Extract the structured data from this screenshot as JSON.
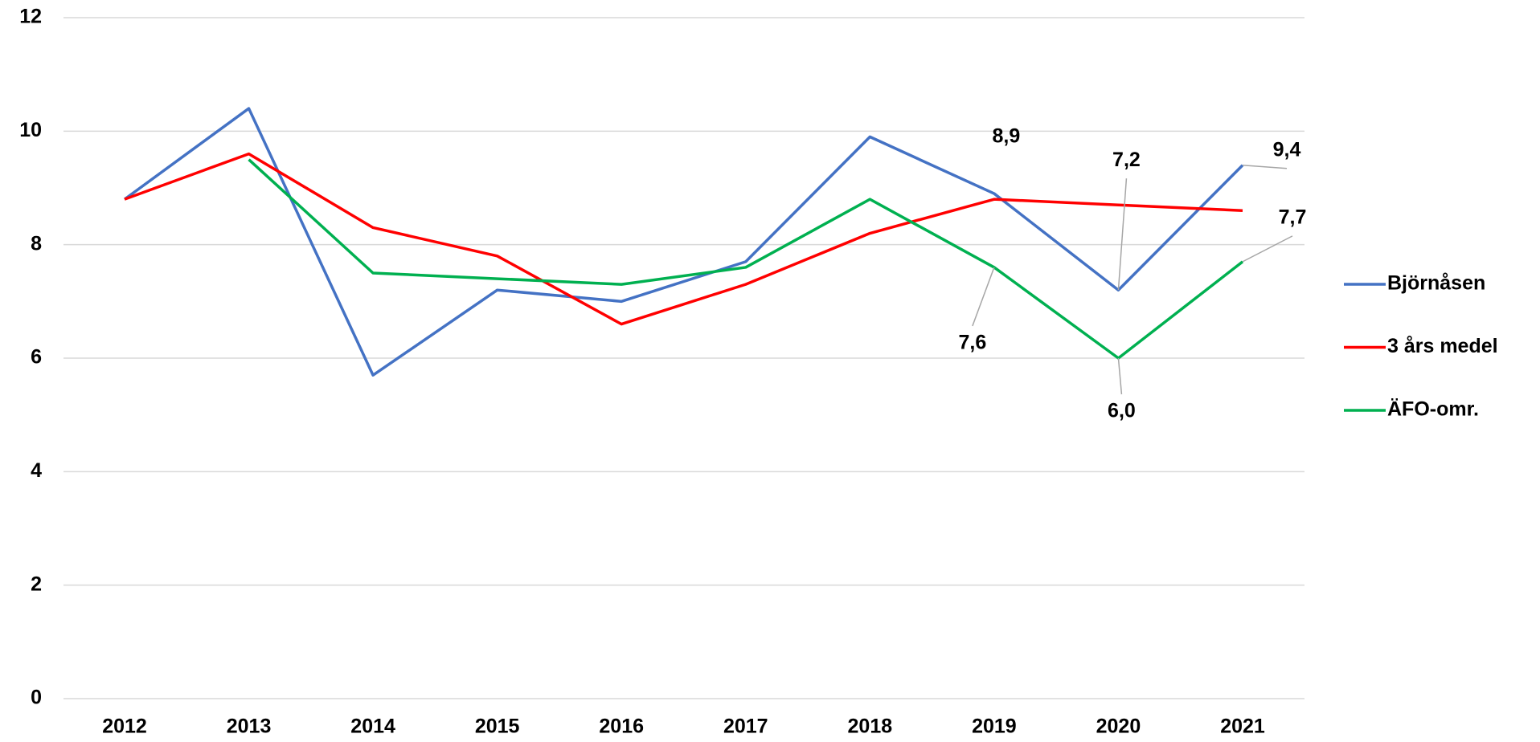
{
  "chart_data": {
    "type": "line",
    "categories": [
      "2012",
      "2013",
      "2014",
      "2015",
      "2016",
      "2017",
      "2018",
      "2019",
      "2020",
      "2021"
    ],
    "series": [
      {
        "name": "Björnåsen",
        "color": "#4472c4",
        "values": [
          8.8,
          10.4,
          5.7,
          7.2,
          7.0,
          7.7,
          9.9,
          8.9,
          7.2,
          9.4
        ],
        "value_labels": [
          null,
          null,
          null,
          null,
          null,
          null,
          null,
          "8,9",
          "7,2",
          "9,4"
        ]
      },
      {
        "name": "3 års medel",
        "color": "#ff0000",
        "values": [
          8.8,
          9.6,
          8.3,
          7.8,
          6.6,
          7.3,
          8.2,
          8.8,
          8.7,
          8.6
        ]
      },
      {
        "name": "ÄFO-omr.",
        "color": "#00b050",
        "values": [
          null,
          9.5,
          7.5,
          7.4,
          7.3,
          7.6,
          8.8,
          7.6,
          6.0,
          7.7
        ],
        "value_labels": [
          null,
          null,
          null,
          null,
          null,
          null,
          null,
          "7,6",
          "6,0",
          "7,7"
        ]
      }
    ],
    "ylim": [
      0,
      12
    ],
    "yticks": [
      0,
      2,
      4,
      6,
      8,
      10,
      12
    ],
    "grid": true,
    "legend": "right"
  }
}
